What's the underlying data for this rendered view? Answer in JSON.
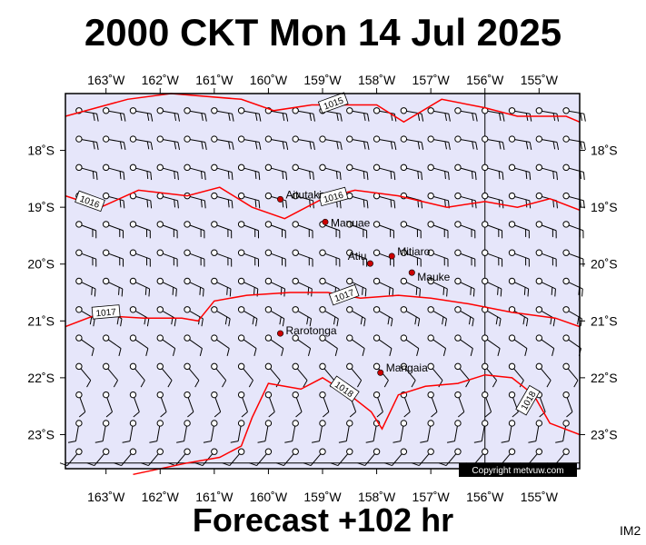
{
  "title": "2000 CKT Mon 14 Jul 2025",
  "footer": "Forecast +102 hr",
  "image_code": "IM2",
  "copyright": "Copyright metvuw.com",
  "colors": {
    "sea": "#e6e6fa",
    "isobar": "#ff0000",
    "place_dot": "#cc0000",
    "wind": "#000000",
    "credit_box": "#000000"
  },
  "map": {
    "lon_range": [
      -163.75,
      -154.25
    ],
    "lat_range": [
      -23.6,
      -17.0
    ],
    "lon_ticks": [
      {
        "value": -163,
        "label": "163˚W"
      },
      {
        "value": -162,
        "label": "162˚W"
      },
      {
        "value": -161,
        "label": "161˚W"
      },
      {
        "value": -160,
        "label": "160˚W"
      },
      {
        "value": -159,
        "label": "159˚W"
      },
      {
        "value": -158,
        "label": "158˚W"
      },
      {
        "value": -157,
        "label": "157˚W"
      },
      {
        "value": -156,
        "label": "156˚W"
      },
      {
        "value": -155,
        "label": "155˚W"
      }
    ],
    "lat_ticks": [
      {
        "value": -18,
        "label": "18˚S"
      },
      {
        "value": -19,
        "label": "19˚S"
      },
      {
        "value": -20,
        "label": "20˚S"
      },
      {
        "value": -21,
        "label": "21˚S"
      },
      {
        "value": -22,
        "label": "22˚S"
      },
      {
        "value": -23,
        "label": "23˚S"
      }
    ],
    "places": [
      {
        "name": "Aitutaki",
        "lon": -159.78,
        "lat": -18.86
      },
      {
        "name": "Manuae",
        "lon": -158.95,
        "lat": -19.26
      },
      {
        "name": "Atiu",
        "lon": -158.12,
        "lat": -19.99
      },
      {
        "name": "Mitiaro",
        "lon": -157.72,
        "lat": -19.86
      },
      {
        "name": "Mauke",
        "lon": -157.35,
        "lat": -20.15
      },
      {
        "name": "Rarotonga",
        "lon": -159.78,
        "lat": -21.22
      },
      {
        "name": "Mangaia",
        "lon": -157.93,
        "lat": -21.91
      }
    ],
    "isobars": [
      {
        "label": "1015",
        "points": [
          [
            -163.75,
            -17.4
          ],
          [
            -162.6,
            -17.1
          ],
          [
            -161.8,
            -17.0
          ],
          [
            -160.5,
            -17.1
          ],
          [
            -159.9,
            -17.3
          ],
          [
            -159.2,
            -17.2
          ],
          [
            -158.6,
            -17.2
          ],
          [
            -158.0,
            -17.2
          ],
          [
            -157.5,
            -17.5
          ],
          [
            -156.8,
            -17.1
          ],
          [
            -156.0,
            -17.25
          ],
          [
            -155.4,
            -17.4
          ],
          [
            -154.5,
            -17.4
          ],
          [
            -154.25,
            -17.5
          ]
        ]
      },
      {
        "label": "1016",
        "points": [
          [
            -163.75,
            -18.8
          ],
          [
            -163.1,
            -19.0
          ],
          [
            -162.4,
            -18.7
          ],
          [
            -161.5,
            -18.8
          ],
          [
            -160.9,
            -18.65
          ],
          [
            -160.3,
            -19.0
          ],
          [
            -159.7,
            -19.2
          ],
          [
            -159.0,
            -18.85
          ],
          [
            -158.4,
            -18.7
          ],
          [
            -157.6,
            -18.8
          ],
          [
            -156.7,
            -19.0
          ],
          [
            -156.0,
            -18.9
          ],
          [
            -155.4,
            -19.0
          ],
          [
            -154.8,
            -18.85
          ],
          [
            -154.25,
            -19.05
          ]
        ]
      },
      {
        "label": "1017",
        "points": [
          [
            -163.75,
            -21.1
          ],
          [
            -163.2,
            -20.9
          ],
          [
            -162.3,
            -20.95
          ],
          [
            -161.6,
            -20.95
          ],
          [
            -161.3,
            -21.0
          ],
          [
            -161.0,
            -20.65
          ],
          [
            -160.4,
            -20.55
          ],
          [
            -159.6,
            -20.5
          ],
          [
            -158.9,
            -20.5
          ],
          [
            -158.3,
            -20.6
          ],
          [
            -157.6,
            -20.55
          ],
          [
            -157.0,
            -20.6
          ],
          [
            -156.3,
            -20.7
          ],
          [
            -155.5,
            -20.85
          ],
          [
            -154.7,
            -20.95
          ],
          [
            -154.25,
            -21.1
          ]
        ]
      },
      {
        "label": "1018",
        "points": [
          [
            -162.5,
            -23.7
          ],
          [
            -161.5,
            -23.5
          ],
          [
            -160.9,
            -23.4
          ],
          [
            -160.5,
            -23.2
          ],
          [
            -160.3,
            -22.7
          ],
          [
            -160.0,
            -22.1
          ],
          [
            -159.4,
            -22.2
          ],
          [
            -159.0,
            -22.0
          ],
          [
            -158.5,
            -22.3
          ],
          [
            -158.1,
            -22.6
          ],
          [
            -157.9,
            -22.9
          ],
          [
            -157.6,
            -22.3
          ],
          [
            -157.1,
            -22.15
          ],
          [
            -156.5,
            -22.1
          ],
          [
            -156.0,
            -21.95
          ],
          [
            -155.5,
            -22.0
          ],
          [
            -155.1,
            -22.3
          ],
          [
            -154.8,
            -22.8
          ],
          [
            -154.25,
            -23.0
          ]
        ]
      }
    ],
    "isobar_labels": [
      {
        "text": "1015",
        "lon": -158.8,
        "lat": -17.17,
        "angle": -20
      },
      {
        "text": "1016",
        "lon": -158.8,
        "lat": -18.82,
        "angle": -15
      },
      {
        "text": "1016",
        "lon": -163.3,
        "lat": -18.9,
        "angle": 20
      },
      {
        "text": "1017",
        "lon": -158.6,
        "lat": -20.55,
        "angle": -20
      },
      {
        "text": "1017",
        "lon": -163.0,
        "lat": -20.85,
        "angle": -5
      },
      {
        "text": "1018",
        "lon": -158.6,
        "lat": -22.2,
        "angle": 35
      },
      {
        "text": "1018",
        "lon": -155.2,
        "lat": -22.4,
        "angle": -60
      }
    ],
    "wind_grid": {
      "lon_start": -163.5,
      "lon_step": 0.5,
      "lon_count": 19,
      "lat_start": -17.3,
      "lat_step": -0.5,
      "lat_count": 13,
      "row_direction_deg": [
        100,
        100,
        105,
        105,
        110,
        110,
        115,
        120,
        125,
        140,
        160,
        190,
        220
      ],
      "row_barbs": [
        2,
        2,
        2,
        2,
        2,
        2,
        2,
        2,
        1,
        1,
        1,
        1,
        1
      ]
    }
  }
}
